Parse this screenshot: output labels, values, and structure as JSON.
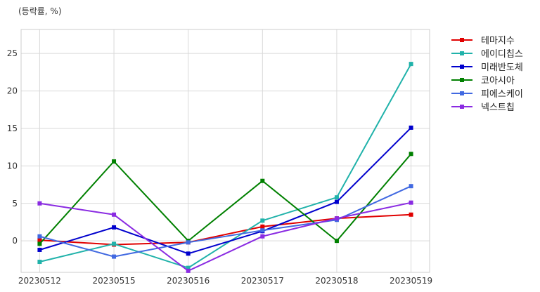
{
  "chart_data": {
    "type": "line",
    "unit_label": "(등락률, %)",
    "categories": [
      "20230512",
      "20230515",
      "20230516",
      "20230517",
      "20230518",
      "20230519"
    ],
    "ylim": [
      -4.2,
      28.2
    ],
    "yticks": [
      0,
      5,
      10,
      15,
      20,
      25
    ],
    "grid": true,
    "legend_position": "outside-right-top",
    "series": [
      {
        "name": "테마지수",
        "color": "#e00000",
        "values": [
          0.1,
          -0.5,
          -0.2,
          1.9,
          3.0,
          3.5
        ]
      },
      {
        "name": "에이디칩스",
        "color": "#20b2aa",
        "values": [
          -2.8,
          -0.4,
          -3.6,
          2.7,
          5.8,
          23.6
        ]
      },
      {
        "name": "미래반도체",
        "color": "#0000cd",
        "values": [
          -1.2,
          1.8,
          -1.7,
          1.3,
          5.2,
          15.1
        ]
      },
      {
        "name": "코아시아",
        "color": "#008000",
        "values": [
          -0.4,
          10.6,
          0.0,
          8.0,
          0.0,
          11.6
        ]
      },
      {
        "name": "피에스케이",
        "color": "#4169e1",
        "values": [
          0.6,
          -2.1,
          -0.2,
          1.4,
          2.8,
          7.3
        ]
      },
      {
        "name": "넥스트칩",
        "color": "#8a2be2",
        "values": [
          5.0,
          3.5,
          -4.0,
          0.6,
          3.0,
          5.1
        ]
      }
    ]
  }
}
